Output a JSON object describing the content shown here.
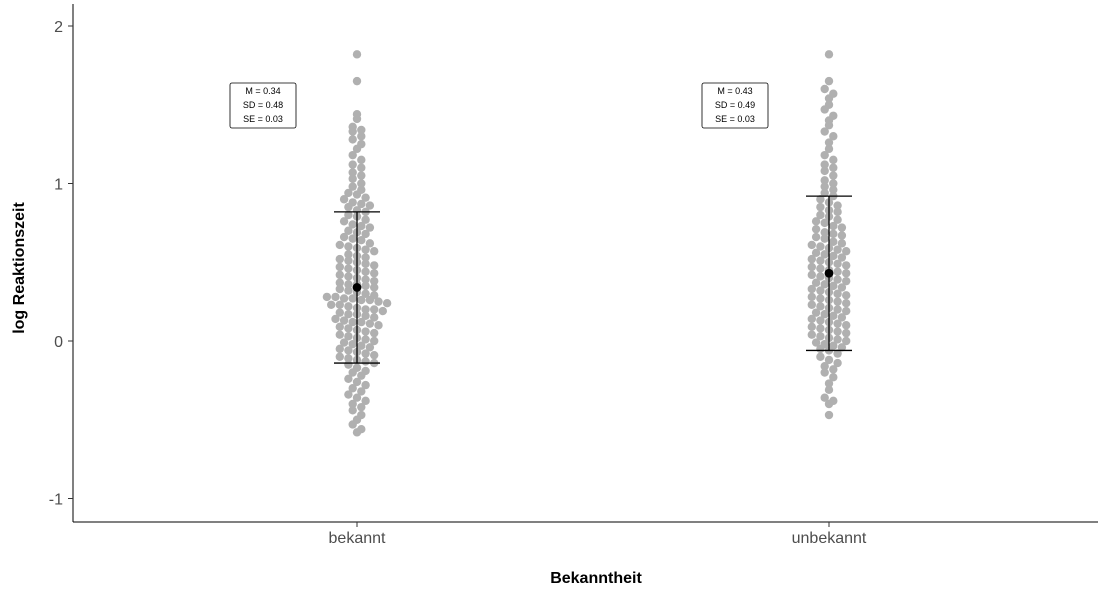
{
  "chart_data": {
    "type": "scatter",
    "subtype": "beeswarm-with-errorbars",
    "xlabel": "Bekanntheit",
    "ylabel": "log Reaktionszeit",
    "categories": [
      "bekannt",
      "unbekannt"
    ],
    "ylim": [
      -1.15,
      2.1
    ],
    "yticks": [
      -1,
      0,
      1,
      2
    ],
    "ytick_labels": [
      "-1",
      "0",
      "1",
      "2"
    ],
    "grid": false,
    "point_color": "#b0b0b0",
    "mean_color": "#000000",
    "groups": [
      {
        "category": "bekannt",
        "mean": 0.34,
        "sd": 0.48,
        "se": 0.03,
        "errorbar": [
          -0.14,
          0.82
        ],
        "stats_text": [
          "M = 0.34",
          "SD = 0.48",
          "SE = 0.03"
        ],
        "points": [
          1.82,
          1.65,
          1.44,
          1.41,
          1.36,
          1.34,
          1.33,
          1.3,
          1.28,
          1.25,
          1.22,
          1.18,
          1.15,
          1.12,
          1.1,
          1.07,
          1.05,
          1.03,
          1.0,
          0.98,
          0.96,
          0.94,
          0.93,
          0.91,
          0.9,
          0.88,
          0.87,
          0.86,
          0.85,
          0.83,
          0.82,
          0.8,
          0.79,
          0.77,
          0.76,
          0.74,
          0.73,
          0.72,
          0.7,
          0.69,
          0.68,
          0.66,
          0.65,
          0.64,
          0.62,
          0.61,
          0.6,
          0.59,
          0.58,
          0.57,
          0.55,
          0.54,
          0.53,
          0.52,
          0.51,
          0.5,
          0.49,
          0.48,
          0.47,
          0.46,
          0.45,
          0.44,
          0.43,
          0.42,
          0.41,
          0.4,
          0.39,
          0.38,
          0.37,
          0.36,
          0.36,
          0.35,
          0.34,
          0.33,
          0.32,
          0.31,
          0.3,
          0.29,
          0.28,
          0.28,
          0.27,
          0.27,
          0.26,
          0.26,
          0.25,
          0.24,
          0.23,
          0.23,
          0.22,
          0.21,
          0.2,
          0.2,
          0.19,
          0.18,
          0.17,
          0.17,
          0.16,
          0.15,
          0.14,
          0.13,
          0.12,
          0.12,
          0.11,
          0.1,
          0.09,
          0.08,
          0.07,
          0.06,
          0.05,
          0.04,
          0.03,
          0.02,
          0.01,
          0.0,
          -0.01,
          -0.02,
          -0.03,
          -0.04,
          -0.05,
          -0.06,
          -0.07,
          -0.08,
          -0.09,
          -0.1,
          -0.11,
          -0.12,
          -0.13,
          -0.14,
          -0.15,
          -0.17,
          -0.19,
          -0.2,
          -0.22,
          -0.24,
          -0.26,
          -0.28,
          -0.3,
          -0.32,
          -0.34,
          -0.36,
          -0.38,
          -0.4,
          -0.42,
          -0.44,
          -0.47,
          -0.5,
          -0.53,
          -0.56,
          -0.58
        ]
      },
      {
        "category": "unbekannt",
        "mean": 0.43,
        "sd": 0.49,
        "se": 0.03,
        "errorbar": [
          -0.06,
          0.92
        ],
        "stats_text": [
          "M = 0.43",
          "SD = 0.49",
          "SE = 0.03"
        ],
        "points": [
          1.82,
          1.65,
          1.6,
          1.57,
          1.54,
          1.5,
          1.47,
          1.43,
          1.4,
          1.37,
          1.33,
          1.3,
          1.26,
          1.22,
          1.18,
          1.15,
          1.12,
          1.1,
          1.08,
          1.05,
          1.02,
          1.0,
          0.98,
          0.96,
          0.94,
          0.92,
          0.9,
          0.88,
          0.86,
          0.85,
          0.83,
          0.82,
          0.8,
          0.79,
          0.77,
          0.76,
          0.75,
          0.73,
          0.72,
          0.71,
          0.69,
          0.68,
          0.67,
          0.66,
          0.65,
          0.63,
          0.62,
          0.61,
          0.6,
          0.59,
          0.58,
          0.57,
          0.56,
          0.55,
          0.54,
          0.53,
          0.52,
          0.51,
          0.5,
          0.49,
          0.48,
          0.47,
          0.46,
          0.45,
          0.44,
          0.43,
          0.42,
          0.41,
          0.4,
          0.39,
          0.38,
          0.37,
          0.36,
          0.35,
          0.34,
          0.33,
          0.32,
          0.31,
          0.3,
          0.29,
          0.28,
          0.27,
          0.26,
          0.25,
          0.24,
          0.23,
          0.22,
          0.21,
          0.2,
          0.19,
          0.18,
          0.17,
          0.16,
          0.15,
          0.14,
          0.13,
          0.12,
          0.11,
          0.1,
          0.09,
          0.08,
          0.07,
          0.06,
          0.05,
          0.04,
          0.03,
          0.02,
          0.01,
          0.0,
          -0.01,
          -0.02,
          -0.03,
          -0.04,
          -0.05,
          -0.06,
          -0.08,
          -0.1,
          -0.12,
          -0.14,
          -0.16,
          -0.18,
          -0.2,
          -0.23,
          -0.27,
          -0.31,
          -0.36,
          -0.38,
          -0.4,
          -0.47
        ]
      }
    ]
  }
}
